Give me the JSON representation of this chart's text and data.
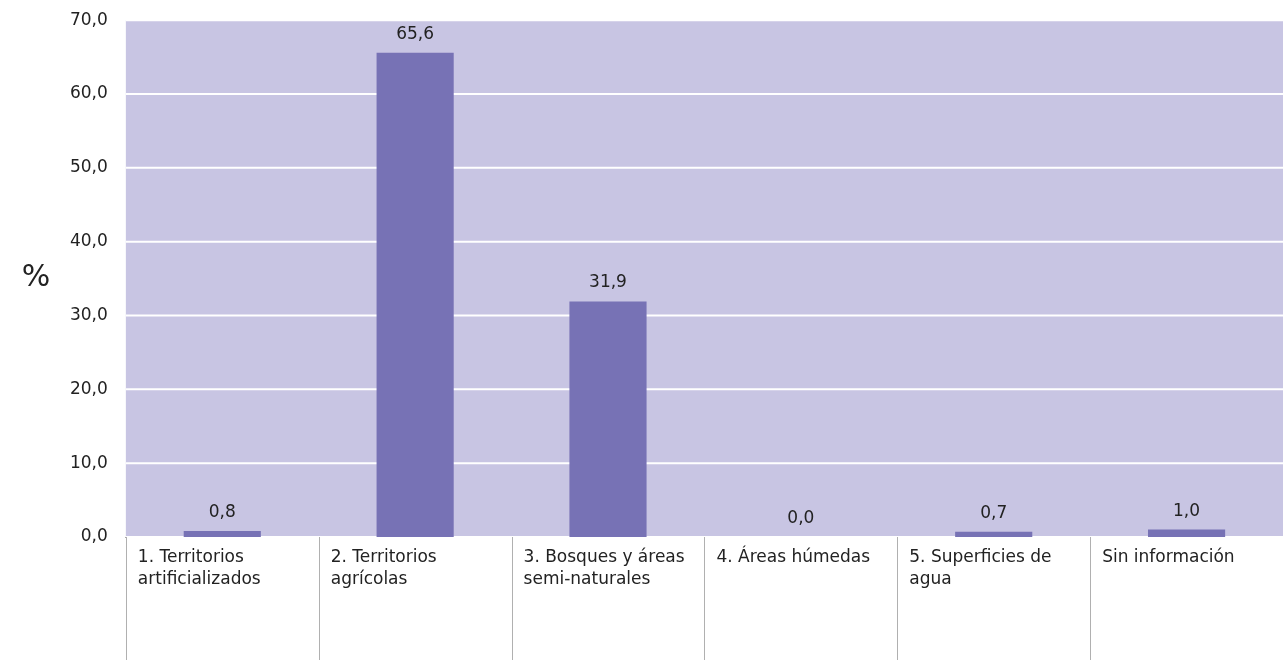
{
  "chart_data": {
    "type": "bar",
    "ylabel": "%",
    "categories": [
      "1. Territorios artificializados",
      "2. Territorios agrícolas",
      "3. Bosques y áreas semi-naturales",
      "4. Áreas húmedas",
      "5. Superficies de agua",
      "Sin información"
    ],
    "values": [
      0.8,
      65.6,
      31.9,
      0.0,
      0.7,
      1.0
    ],
    "value_labels": [
      "0,8",
      "65,6",
      "31,9",
      "0,0",
      "0,7",
      "1,0"
    ],
    "color": "#7772b5",
    "ylim": [
      0,
      70
    ],
    "yticks": [
      {
        "value": 0,
        "label": "0,0"
      },
      {
        "value": 10,
        "label": "10,0"
      },
      {
        "value": 20,
        "label": "20,0"
      },
      {
        "value": 30,
        "label": "30,0"
      },
      {
        "value": 40,
        "label": "40,0"
      },
      {
        "value": 50,
        "label": "50,0"
      },
      {
        "value": 60,
        "label": "60,0"
      },
      {
        "value": 70,
        "label": "70,0"
      }
    ],
    "grid": "y",
    "legend": false
  }
}
